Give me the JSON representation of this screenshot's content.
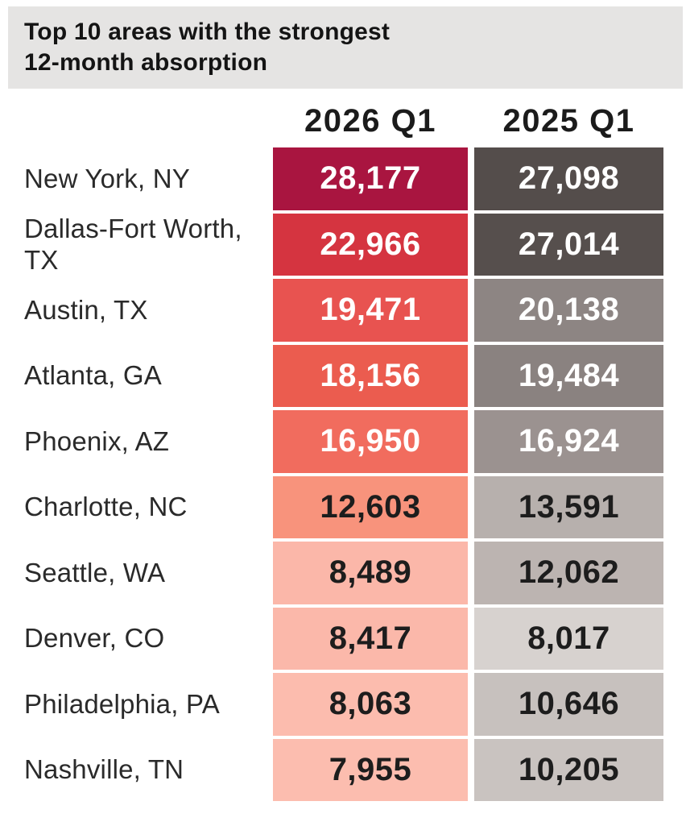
{
  "title": {
    "line1": "Top 10 areas with the strongest",
    "line2": "12-month absorption"
  },
  "colors": {
    "title_band_bg": "#e5e4e3",
    "white_text": "#ffffff",
    "dark_text": "#1d1d1d"
  },
  "columns": [
    {
      "label": "2026 Q1"
    },
    {
      "label": "2025 Q1"
    }
  ],
  "rows": [
    {
      "area": "New York, NY",
      "v2026": "28,177",
      "v2025": "27,098",
      "c2026": {
        "bg": "#a91540",
        "fg": "#ffffff"
      },
      "c2025": {
        "bg": "#544d4b",
        "fg": "#ffffff"
      }
    },
    {
      "area": "Dallas-Fort Worth, TX",
      "v2026": "22,966",
      "v2025": "27,014",
      "c2026": {
        "bg": "#d53440",
        "fg": "#ffffff"
      },
      "c2025": {
        "bg": "#564f4d",
        "fg": "#ffffff"
      }
    },
    {
      "area": "Austin, TX",
      "v2026": "19,471",
      "v2025": "20,138",
      "c2026": {
        "bg": "#e85350",
        "fg": "#ffffff"
      },
      "c2025": {
        "bg": "#8d8583",
        "fg": "#ffffff"
      }
    },
    {
      "area": "Atlanta, GA",
      "v2026": "18,156",
      "v2025": "19,484",
      "c2026": {
        "bg": "#eb5c4f",
        "fg": "#ffffff"
      },
      "c2025": {
        "bg": "#8a8280",
        "fg": "#ffffff"
      }
    },
    {
      "area": "Phoenix, AZ",
      "v2026": "16,950",
      "v2025": "16,924",
      "c2026": {
        "bg": "#f16c5e",
        "fg": "#ffffff"
      },
      "c2025": {
        "bg": "#9b9290",
        "fg": "#ffffff"
      }
    },
    {
      "area": "Charlotte, NC",
      "v2026": "12,603",
      "v2025": "13,591",
      "c2026": {
        "bg": "#f8937c",
        "fg": "#1d1d1d"
      },
      "c2025": {
        "bg": "#b7b0ad",
        "fg": "#1d1d1d"
      }
    },
    {
      "area": "Seattle, WA",
      "v2026": "8,489",
      "v2025": "12,062",
      "c2026": {
        "bg": "#fbb7a9",
        "fg": "#1d1d1d"
      },
      "c2025": {
        "bg": "#bcb4b1",
        "fg": "#1d1d1d"
      }
    },
    {
      "area": "Denver, CO",
      "v2026": "8,417",
      "v2025": "8,017",
      "c2026": {
        "bg": "#fbb8aa",
        "fg": "#1d1d1d"
      },
      "c2025": {
        "bg": "#d7d2cf",
        "fg": "#1d1d1d"
      }
    },
    {
      "area": "Philadelphia, PA",
      "v2026": "8,063",
      "v2025": "10,646",
      "c2026": {
        "bg": "#fcbcae",
        "fg": "#1d1d1d"
      },
      "c2025": {
        "bg": "#c7c1be",
        "fg": "#1d1d1d"
      }
    },
    {
      "area": "Nashville, TN",
      "v2026": "7,955",
      "v2025": "10,205",
      "c2026": {
        "bg": "#fcbdaf",
        "fg": "#1d1d1d"
      },
      "c2025": {
        "bg": "#c9c3c0",
        "fg": "#1d1d1d"
      }
    }
  ],
  "chart_data": {
    "type": "heatmap",
    "title": "Top 10 areas with the strongest 12-month absorption",
    "categories": [
      "New York, NY",
      "Dallas-Fort Worth, TX",
      "Austin, TX",
      "Atlanta, GA",
      "Phoenix, AZ",
      "Charlotte, NC",
      "Seattle, WA",
      "Denver, CO",
      "Philadelphia, PA",
      "Nashville, TN"
    ],
    "series": [
      {
        "name": "2026 Q1",
        "values": [
          28177,
          22966,
          19471,
          18156,
          16950,
          12603,
          8489,
          8417,
          8063,
          7955
        ],
        "color_scale": "red, darker = higher"
      },
      {
        "name": "2025 Q1",
        "values": [
          27098,
          27014,
          20138,
          19484,
          16924,
          13591,
          12062,
          8017,
          10646,
          10205
        ],
        "color_scale": "warm gray, darker = higher"
      }
    ],
    "legend_position": "none",
    "grid": false
  }
}
